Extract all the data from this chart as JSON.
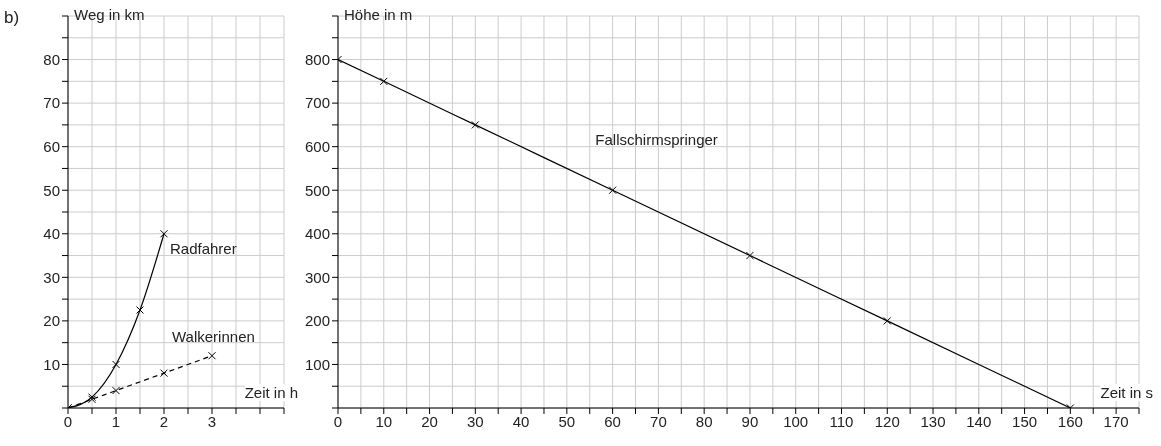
{
  "chart_data": [
    {
      "type": "line",
      "annotations": [
        "b)"
      ],
      "xlabel": "Zeit in h",
      "ylabel": "Weg in km",
      "xlim": [
        0,
        4.5
      ],
      "ylim": [
        0,
        90
      ],
      "xticks": [
        0,
        {
          "value": 0.5,
          "label": null
        },
        1,
        {
          "value": 1.5,
          "label": null
        },
        2,
        {
          "value": 2.5,
          "label": null
        },
        3,
        {
          "value": 3.5,
          "label": null
        },
        {
          "value": 4,
          "label": null
        },
        {
          "value": 4.5,
          "label": null
        }
      ],
      "yticks": [
        {
          "value": 0,
          "label": null
        },
        {
          "value": 5,
          "label": null
        },
        10,
        {
          "value": 15,
          "label": null
        },
        20,
        {
          "value": 25,
          "label": null
        },
        30,
        {
          "value": 35,
          "label": null
        },
        40,
        {
          "value": 45,
          "label": null
        },
        50,
        {
          "value": 55,
          "label": null
        },
        60,
        {
          "value": 65,
          "label": null
        },
        70,
        {
          "value": 75,
          "label": null
        },
        80,
        {
          "value": 85,
          "label": null
        },
        {
          "value": 90,
          "label": null
        }
      ],
      "grid": true,
      "marker": "cross",
      "series": [
        {
          "name": "Radfahrer",
          "color": "#000000",
          "line_style": "solid",
          "x": [
            0,
            0.5,
            1,
            1.5,
            2
          ],
          "values": [
            0,
            2.5,
            10,
            22.5,
            40
          ]
        },
        {
          "name": "Walkerinnen",
          "color": "#000000",
          "line_style": "dashed",
          "x": [
            0,
            0.5,
            1,
            2,
            3
          ],
          "values": [
            0,
            2,
            4,
            8,
            12
          ]
        }
      ]
    },
    {
      "type": "line",
      "xlabel": "Zeit in s",
      "ylabel": "Höhe in m",
      "xlim": [
        0,
        175
      ],
      "ylim": [
        0,
        900
      ],
      "xticks": [
        0,
        {
          "value": 5,
          "label": null
        },
        10,
        {
          "value": 15,
          "label": null
        },
        20,
        {
          "value": 25,
          "label": null
        },
        30,
        {
          "value": 35,
          "label": null
        },
        40,
        {
          "value": 45,
          "label": null
        },
        50,
        {
          "value": 55,
          "label": null
        },
        60,
        {
          "value": 65,
          "label": null
        },
        70,
        {
          "value": 75,
          "label": null
        },
        80,
        {
          "value": 85,
          "label": null
        },
        90,
        {
          "value": 95,
          "label": null
        },
        100,
        {
          "value": 105,
          "label": null
        },
        110,
        {
          "value": 115,
          "label": null
        },
        120,
        {
          "value": 125,
          "label": null
        },
        130,
        {
          "value": 135,
          "label": null
        },
        140,
        {
          "value": 145,
          "label": null
        },
        150,
        {
          "value": 155,
          "label": null
        },
        160,
        {
          "value": 165,
          "label": null
        },
        170,
        {
          "value": 175,
          "label": null
        }
      ],
      "yticks": [
        {
          "value": 0,
          "label": null
        },
        {
          "value": 50,
          "label": null
        },
        100,
        {
          "value": 150,
          "label": null
        },
        200,
        {
          "value": 250,
          "label": null
        },
        300,
        {
          "value": 350,
          "label": null
        },
        400,
        {
          "value": 450,
          "label": null
        },
        500,
        {
          "value": 550,
          "label": null
        },
        600,
        {
          "value": 650,
          "label": null
        },
        700,
        {
          "value": 750,
          "label": null
        },
        800,
        {
          "value": 850,
          "label": null
        },
        {
          "value": 900,
          "label": null
        }
      ],
      "grid": true,
      "marker": "cross",
      "series": [
        {
          "name": "Fallschirmspringer",
          "color": "#000000",
          "line_style": "solid",
          "x": [
            0,
            10,
            30,
            60,
            90,
            120,
            160
          ],
          "values": [
            800,
            750,
            650,
            500,
            350,
            200,
            0
          ]
        }
      ]
    }
  ]
}
